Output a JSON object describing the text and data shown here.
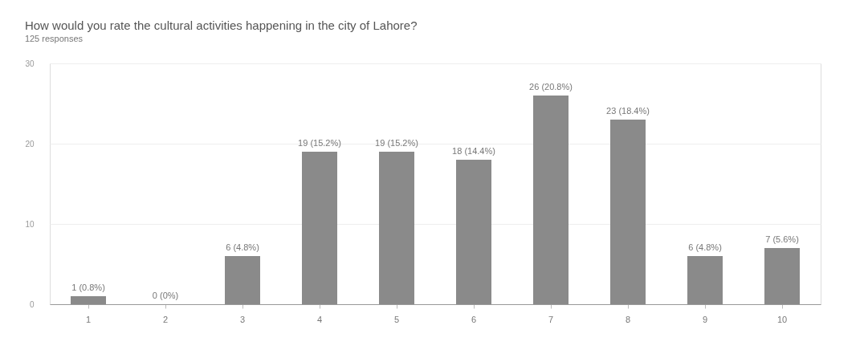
{
  "chart_data": {
    "type": "bar",
    "title": "How would you rate the cultural activities happening in the city of Lahore?",
    "subtitle": "125 responses",
    "categories": [
      "1",
      "2",
      "3",
      "4",
      "5",
      "6",
      "7",
      "8",
      "9",
      "10"
    ],
    "values": [
      1,
      0,
      6,
      19,
      19,
      18,
      26,
      23,
      6,
      7
    ],
    "value_labels": [
      "1 (0.8%)",
      "0 (0%)",
      "6 (4.8%)",
      "19 (15.2%)",
      "19 (15.2%)",
      "18 (14.4%)",
      "26 (20.8%)",
      "23 (18.4%)",
      "6 (4.8%)",
      "7 (5.6%)"
    ],
    "color": "#8a8a8a",
    "ylim": [
      0,
      30
    ],
    "yticks": [
      0,
      10,
      20,
      30
    ],
    "grid": "y"
  }
}
